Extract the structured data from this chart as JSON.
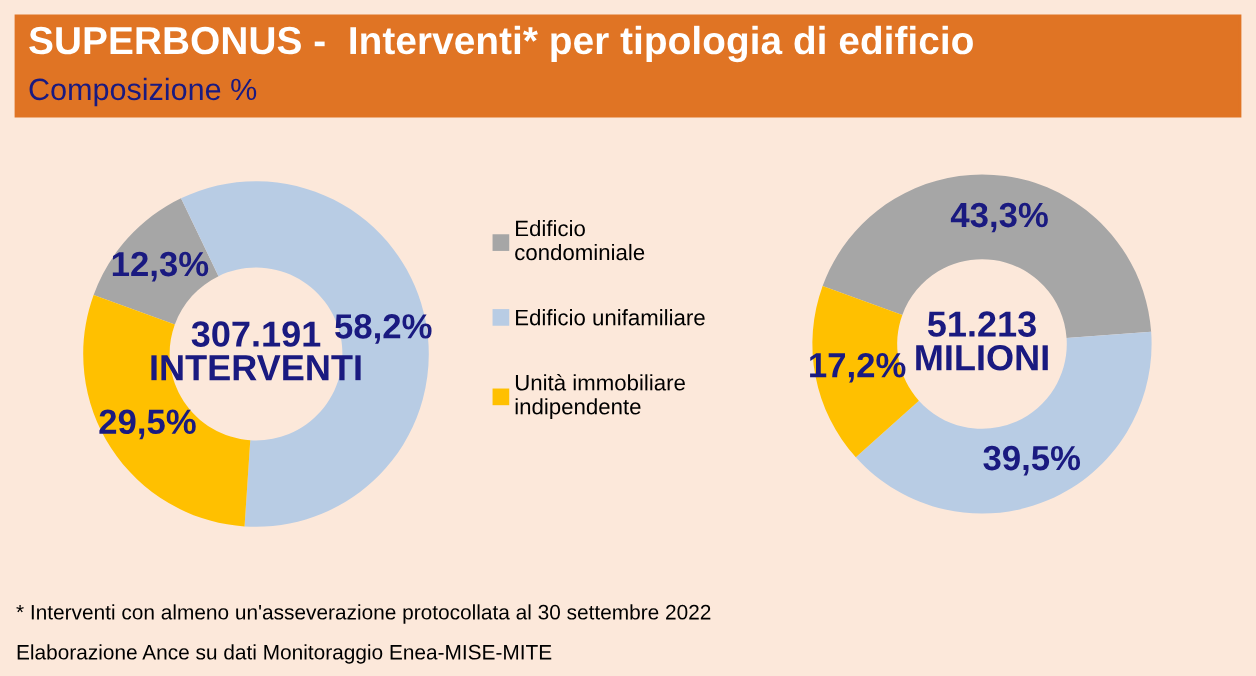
{
  "chart_data": [
    {
      "type": "donut",
      "title": "SUPERBONUS -  Interventi* per tipologia di edificio",
      "subtitle": "Composizione %",
      "categories": [
        "Edificio condominiale",
        "Edificio unifamiliare",
        "Unità immobiliare indipendente"
      ],
      "values": [
        12.3,
        58.2,
        29.5
      ],
      "value_labels": [
        "12,3%",
        "58,2%",
        "29,5%"
      ],
      "colors": [
        "#a6a6a6",
        "#b8cce4",
        "#ffc000"
      ],
      "legend": "right",
      "annotations": [
        "307.191\nINTERVENTI",
        "* Interventi con almeno un'asseverazione protocollata al 30 settembre 2022",
        "Elaborazione Ance su dati Monitoraggio Enea-MISE-MITE"
      ]
    },
    {
      "type": "donut",
      "values": [
        43.3,
        39.5,
        17.2
      ],
      "value_labels": [
        "43,3%",
        "39,5%",
        "17,2%"
      ],
      "colors": [
        "#a6a6a6",
        "#b8cce4",
        "#ffc000"
      ],
      "annotations": [
        "51.213\nMILIONI"
      ]
    }
  ]
}
